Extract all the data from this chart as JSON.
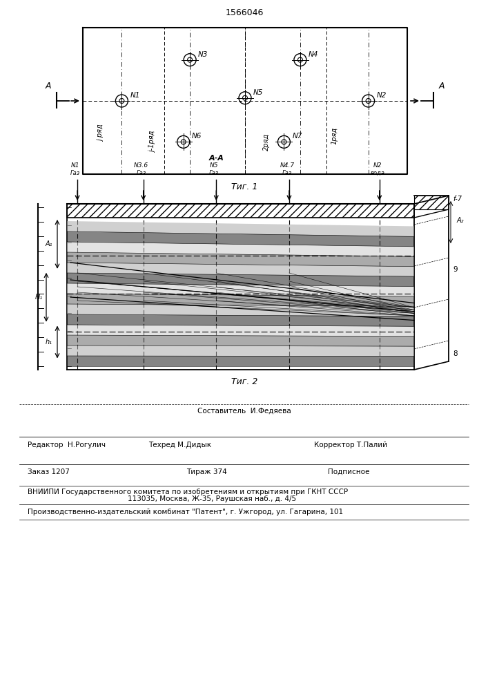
{
  "title": "1566046",
  "fig1_caption": "Τиг. 1",
  "fig2_caption": "Τиг. 2",
  "bg_color": "#ffffff",
  "line_color": "#000000"
}
